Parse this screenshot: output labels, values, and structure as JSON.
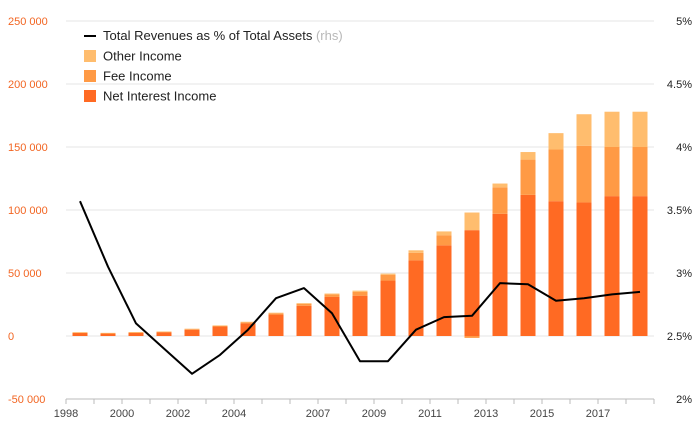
{
  "chart_data": {
    "type": "bar",
    "stacked": true,
    "categories": [
      "1998",
      "1999",
      "2000",
      "2001",
      "2002",
      "2003",
      "2004",
      "2005",
      "2006",
      "2007",
      "2008",
      "2009",
      "2010",
      "2011",
      "2012",
      "2013",
      "2014",
      "2015",
      "2016",
      "2017",
      "2018"
    ],
    "x_tick_labels": [
      "1998",
      "2000",
      "2002",
      "2004",
      "2007",
      "2009",
      "2011",
      "2013",
      "2015",
      "2017"
    ],
    "series": [
      {
        "name": "Net Interest Income",
        "color": "#ff6a23",
        "values": [
          2500,
          2000,
          2500,
          3000,
          5000,
          7500,
          10000,
          17000,
          24000,
          31000,
          32000,
          44000,
          60000,
          72000,
          84000,
          97000,
          112000,
          107000,
          106000,
          111000,
          111000
        ]
      },
      {
        "name": "Fee Income",
        "color": "#ff9a45",
        "values": [
          300,
          300,
          400,
          400,
          500,
          600,
          800,
          1000,
          1500,
          2000,
          3000,
          4500,
          6000,
          8000,
          -1500,
          21000,
          28000,
          41000,
          45000,
          39000,
          39000
        ]
      },
      {
        "name": "Other Income",
        "color": "#ffbd6e",
        "values": [
          200,
          200,
          200,
          200,
          300,
          300,
          500,
          500,
          600,
          700,
          1000,
          1000,
          2000,
          3000,
          14000,
          3000,
          6000,
          13000,
          25000,
          28000,
          28000
        ]
      }
    ],
    "line_series": {
      "name": "Total Revenues as % of Total Assets",
      "name_suffix": "(rhs)",
      "color": "#000000",
      "values": [
        3.57,
        3.05,
        2.6,
        2.4,
        2.2,
        2.35,
        2.55,
        2.8,
        2.88,
        2.68,
        2.3,
        2.3,
        2.55,
        2.65,
        2.66,
        2.92,
        2.91,
        2.78,
        2.8,
        2.83,
        2.85
      ]
    },
    "left_axis": {
      "ylim": [
        -50000,
        250000
      ],
      "ticks": [
        -50000,
        0,
        50000,
        100000,
        150000,
        200000,
        250000
      ],
      "tick_labels": [
        "-50 000",
        "0",
        "50 000",
        "100 000",
        "150 000",
        "200 000",
        "250 000"
      ],
      "color": "#f26522"
    },
    "right_axis": {
      "ylim": [
        2,
        5
      ],
      "ticks": [
        2,
        2.5,
        3,
        3.5,
        4,
        4.5,
        5
      ],
      "tick_labels": [
        "2%",
        "2.5%",
        "3%",
        "3.5%",
        "4%",
        "4.5%",
        "5%"
      ],
      "color": "#222222"
    },
    "grid": true,
    "legend_position": "top-left"
  }
}
